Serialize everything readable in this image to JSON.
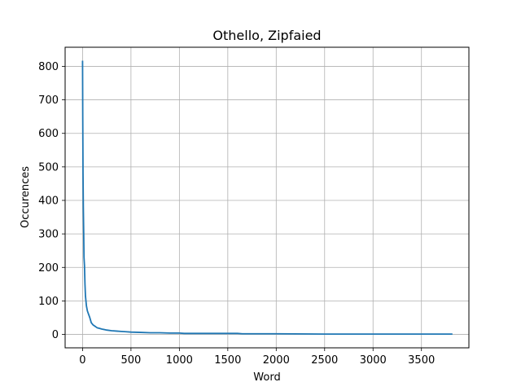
{
  "chart_data": {
    "type": "line",
    "title": "Othello, Zipfaied",
    "xlabel": "Word",
    "ylabel": "Occurences",
    "xlim": [
      -180,
      3990
    ],
    "ylim": [
      -40,
      857
    ],
    "xticks": [
      0,
      500,
      1000,
      1500,
      2000,
      2500,
      3000,
      3500
    ],
    "yticks": [
      0,
      100,
      200,
      300,
      400,
      500,
      600,
      700,
      800
    ],
    "grid": true,
    "series": [
      {
        "color": "#1f77b4",
        "x": [
          0,
          2,
          5,
          8,
          12,
          15,
          20,
          25,
          30,
          40,
          50,
          60,
          75,
          90,
          110,
          130,
          150,
          175,
          200,
          250,
          300,
          350,
          400,
          450,
          500,
          600,
          700,
          800,
          900,
          1000,
          1050,
          1200,
          1400,
          1600,
          1650,
          2000,
          2500,
          3000,
          3500,
          3820
        ],
        "values": [
          817,
          650,
          480,
          380,
          300,
          230,
          205,
          150,
          115,
          85,
          70,
          62,
          50,
          35,
          28,
          24,
          20,
          18,
          16,
          13,
          11,
          10,
          9,
          8,
          7,
          6,
          5,
          5,
          4,
          4,
          3,
          3,
          3,
          3,
          2,
          2,
          1,
          1,
          1,
          1
        ]
      }
    ]
  }
}
